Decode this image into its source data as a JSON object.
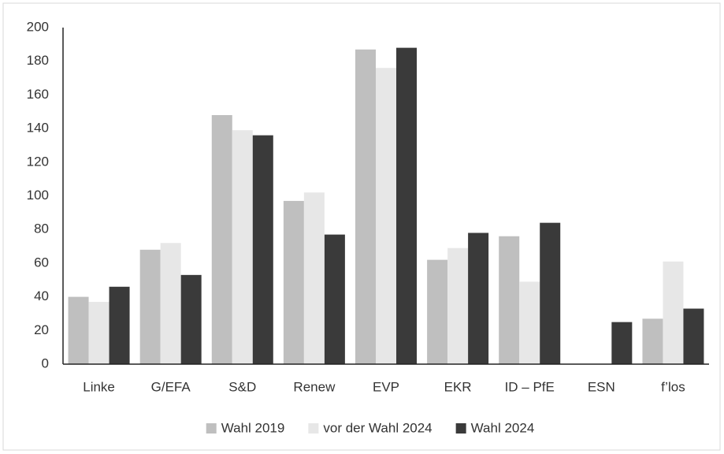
{
  "chart_data": {
    "type": "bar",
    "categories": [
      "Linke",
      "G/EFA",
      "S&D",
      "Renew",
      "EVP",
      "EKR",
      "ID – PfE",
      "ESN",
      "f’los"
    ],
    "series": [
      {
        "name": "Wahl 2019",
        "color": "#bfbfbf",
        "values": [
          40,
          68,
          148,
          97,
          187,
          62,
          76,
          null,
          27
        ]
      },
      {
        "name": "vor der Wahl 2024",
        "color": "#e7e7e7",
        "values": [
          37,
          72,
          139,
          102,
          176,
          69,
          49,
          null,
          61
        ]
      },
      {
        "name": "Wahl 2024",
        "color": "#3a3a3a",
        "values": [
          46,
          53,
          136,
          77,
          188,
          78,
          84,
          25,
          33
        ]
      }
    ],
    "ylim": [
      0,
      200
    ],
    "yticks": [
      0,
      20,
      40,
      60,
      80,
      100,
      120,
      140,
      160,
      180,
      200
    ],
    "grid": false,
    "legend": "bottom"
  }
}
